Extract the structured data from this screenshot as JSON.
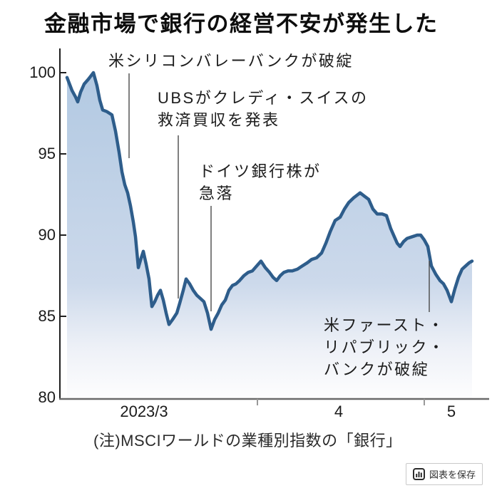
{
  "page": {
    "title": "金融市場で銀行の経営不安が発生した"
  },
  "chart_data": {
    "type": "area",
    "title": "金融市場で銀行の経営不安が発生した",
    "note": "(注)MSCIワールドの業種別指数の「銀行」",
    "ylim": [
      80,
      101.5
    ],
    "yticks": [
      100,
      95,
      90,
      85,
      80
    ],
    "ytick_labels": [
      "100",
      "95",
      "90",
      "85",
      "80"
    ],
    "xtick_labels": [
      "2023/3",
      "4",
      "5"
    ],
    "grid": false,
    "legend": false,
    "colors": {
      "line": "#2e5d8b",
      "fill_top": "#b2c9e2",
      "fill_bottom": "#ffffff",
      "axis": "#1f1f1f"
    },
    "series": [
      {
        "name": "MSCIワールド業種別指数「銀行」",
        "points": [
          [
            94,
            99.7
          ],
          [
            101,
            98.9
          ],
          [
            106,
            98.5
          ],
          [
            109,
            98.2
          ],
          [
            113,
            98.8
          ],
          [
            118,
            99.3
          ],
          [
            124,
            99.6
          ],
          [
            131,
            100.0
          ],
          [
            136,
            99.2
          ],
          [
            140,
            98.3
          ],
          [
            144,
            97.7
          ],
          [
            150,
            97.6
          ],
          [
            157,
            97.4
          ],
          [
            162,
            96.4
          ],
          [
            167,
            95.1
          ],
          [
            171,
            93.9
          ],
          [
            175,
            93.1
          ],
          [
            179,
            92.6
          ],
          [
            183,
            91.8
          ],
          [
            187,
            90.8
          ],
          [
            190,
            89.9
          ],
          [
            194,
            88.0
          ],
          [
            198,
            88.6
          ],
          [
            201,
            89.0
          ],
          [
            205,
            88.2
          ],
          [
            209,
            87.3
          ],
          [
            213,
            85.6
          ],
          [
            217,
            85.9
          ],
          [
            221,
            86.3
          ],
          [
            225,
            86.6
          ],
          [
            229,
            86.0
          ],
          [
            233,
            85.2
          ],
          [
            237,
            84.5
          ],
          [
            242,
            84.8
          ],
          [
            248,
            85.2
          ],
          [
            252,
            85.8
          ],
          [
            257,
            86.6
          ],
          [
            261,
            87.3
          ],
          [
            266,
            87.0
          ],
          [
            271,
            86.6
          ],
          [
            276,
            86.3
          ],
          [
            281,
            86.1
          ],
          [
            286,
            85.9
          ],
          [
            291,
            85.2
          ],
          [
            296,
            84.2
          ],
          [
            301,
            84.8
          ],
          [
            306,
            85.2
          ],
          [
            311,
            85.7
          ],
          [
            316,
            86.0
          ],
          [
            321,
            86.6
          ],
          [
            326,
            86.9
          ],
          [
            331,
            87.0
          ],
          [
            336,
            87.2
          ],
          [
            342,
            87.5
          ],
          [
            348,
            87.7
          ],
          [
            354,
            87.8
          ],
          [
            360,
            88.1
          ],
          [
            366,
            88.4
          ],
          [
            372,
            88.0
          ],
          [
            378,
            87.7
          ],
          [
            383,
            87.4
          ],
          [
            388,
            87.2
          ],
          [
            393,
            87.5
          ],
          [
            398,
            87.7
          ],
          [
            404,
            87.8
          ],
          [
            410,
            87.8
          ],
          [
            417,
            87.9
          ],
          [
            424,
            88.1
          ],
          [
            431,
            88.3
          ],
          [
            437,
            88.5
          ],
          [
            444,
            88.6
          ],
          [
            451,
            88.9
          ],
          [
            457,
            89.5
          ],
          [
            463,
            90.2
          ],
          [
            470,
            90.9
          ],
          [
            477,
            91.1
          ],
          [
            483,
            91.6
          ],
          [
            489,
            92.0
          ],
          [
            496,
            92.3
          ],
          [
            505,
            92.6
          ],
          [
            511,
            92.4
          ],
          [
            517,
            92.2
          ],
          [
            523,
            91.6
          ],
          [
            529,
            91.3
          ],
          [
            536,
            91.3
          ],
          [
            542,
            91.2
          ],
          [
            548,
            90.4
          ],
          [
            553,
            89.9
          ],
          [
            557,
            89.5
          ],
          [
            561,
            89.3
          ],
          [
            566,
            89.6
          ],
          [
            571,
            89.8
          ],
          [
            578,
            89.9
          ],
          [
            585,
            90.0
          ],
          [
            590,
            90.0
          ],
          [
            595,
            89.7
          ],
          [
            600,
            89.3
          ],
          [
            605,
            88.1
          ],
          [
            611,
            87.6
          ],
          [
            617,
            87.2
          ],
          [
            622,
            87.0
          ],
          [
            627,
            86.6
          ],
          [
            633,
            85.9
          ],
          [
            638,
            86.7
          ],
          [
            643,
            87.4
          ],
          [
            648,
            87.9
          ],
          [
            653,
            88.1
          ],
          [
            658,
            88.3
          ],
          [
            662,
            88.4
          ]
        ]
      }
    ],
    "annotations": [
      {
        "id": "svb-collapse",
        "lines": [
          "米シリコンバレーバンクが破綻"
        ]
      },
      {
        "id": "ubs-credit-suisse",
        "lines": [
          "UBSがクレディ・スイスの",
          "救済買収を発表"
        ]
      },
      {
        "id": "deutsche-bank",
        "lines": [
          "ドイツ銀行株が",
          "急落"
        ]
      },
      {
        "id": "first-republic",
        "lines": [
          "米ファースト・",
          "リパブリック・",
          "バンクが破綻"
        ]
      }
    ]
  },
  "footer": {
    "save_button_label": "図表を保存"
  }
}
